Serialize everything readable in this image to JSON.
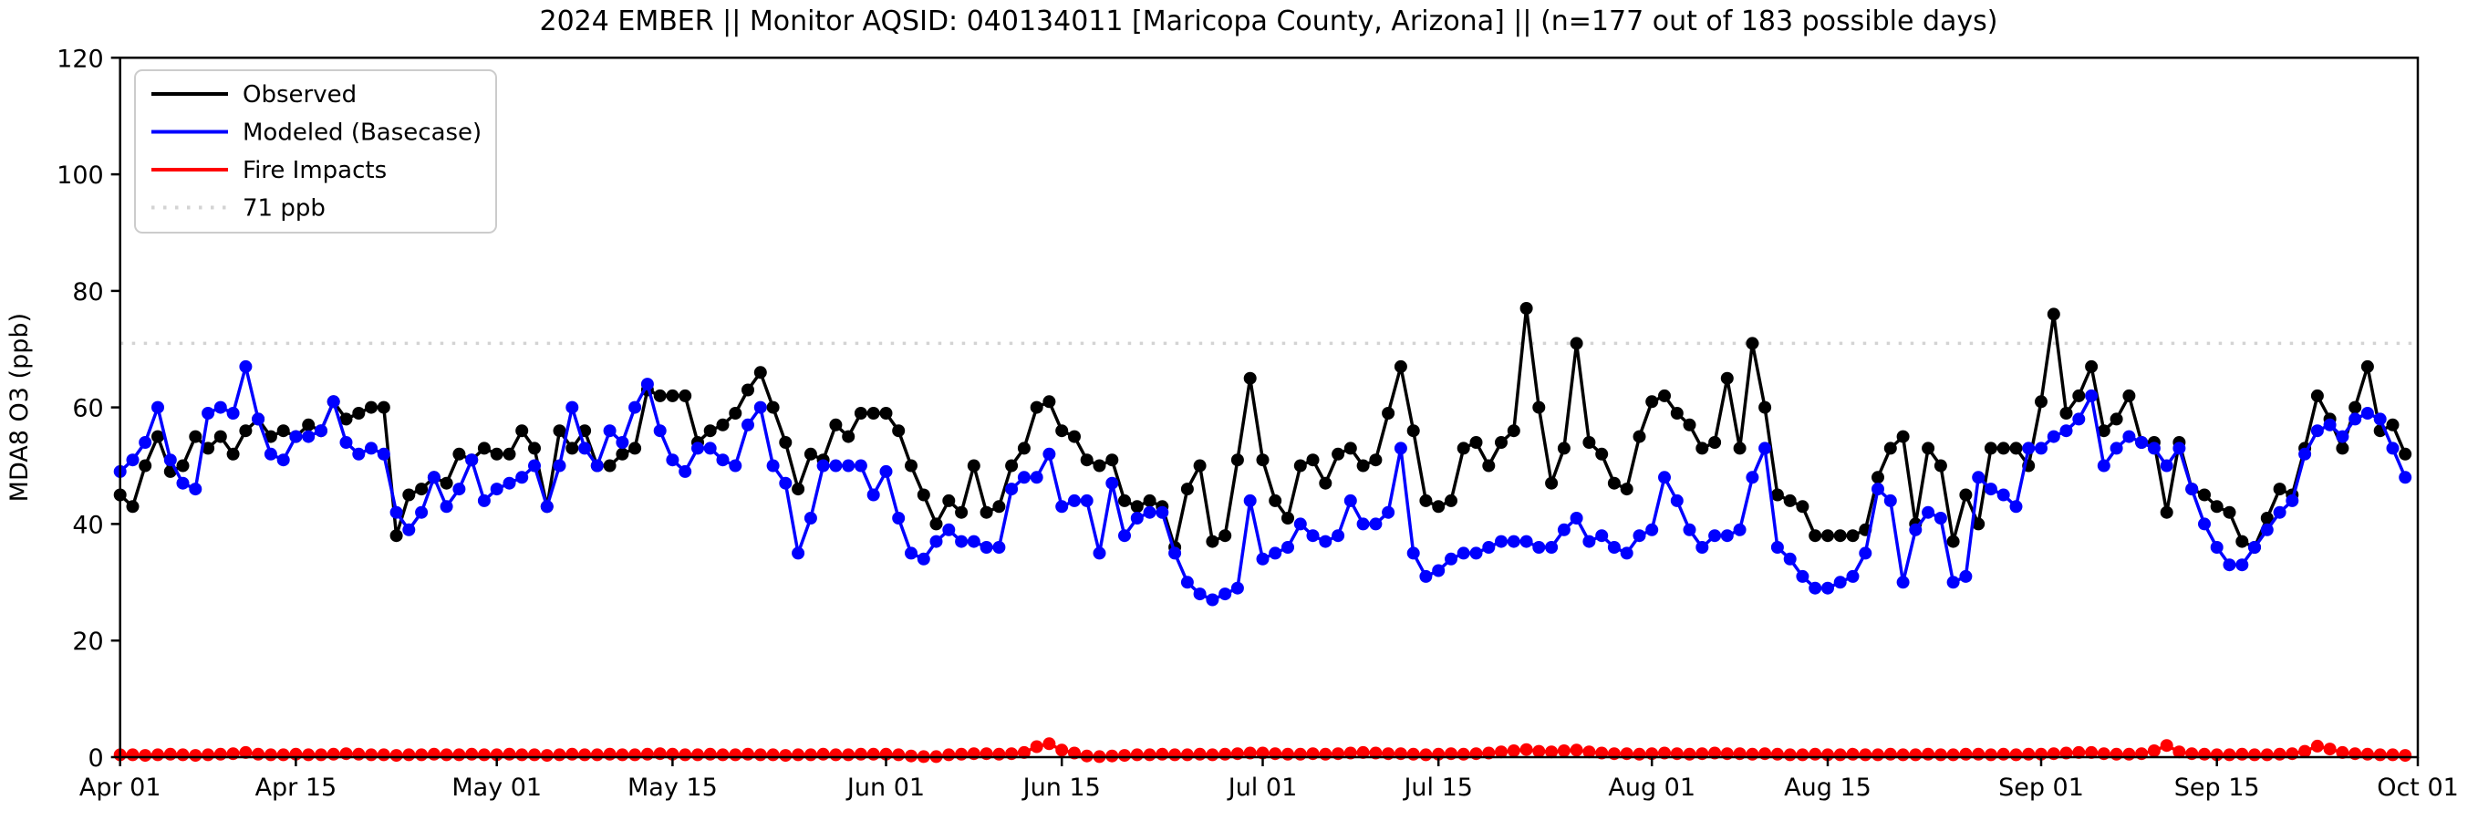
{
  "title": "2024 EMBER || Monitor AQSID: 040134011 [Maricopa County, Arizona] || (n=177 out of 183 possible days)",
  "chart_data": {
    "type": "line",
    "title": "2024 EMBER || Monitor AQSID: 040134011 [Maricopa County, Arizona] || (n=177 out of 183 possible days)",
    "xlabel": "",
    "ylabel": "MDA8 O3 (ppb)",
    "ylim": [
      0,
      120
    ],
    "yticks": [
      0,
      20,
      40,
      60,
      80,
      100,
      120
    ],
    "x_tick_labels": [
      "Apr 01",
      "Apr 15",
      "May 01",
      "May 15",
      "Jun 01",
      "Jun 15",
      "Jul 01",
      "Jul 15",
      "Aug 01",
      "Aug 15",
      "Sep 01",
      "Sep 15",
      "Oct 01"
    ],
    "x_tick_day_index": [
      0,
      14,
      30,
      44,
      61,
      75,
      91,
      105,
      122,
      136,
      153,
      167,
      183
    ],
    "n_days": 183,
    "date_range": "Apr 01 - Sep 30, 2024",
    "grid": false,
    "legend_position": "upper left",
    "threshold": {
      "label": "71 ppb",
      "value": 71,
      "color": "#d3d3d3"
    },
    "legend": [
      {
        "label": "Observed",
        "color": "#000000",
        "style": "solid"
      },
      {
        "label": "Modeled (Basecase)",
        "color": "#0000ff",
        "style": "solid"
      },
      {
        "label": "Fire Impacts",
        "color": "#ff0000",
        "style": "solid"
      },
      {
        "label": "71 ppb",
        "color": "#d3d3d3",
        "style": "dotted"
      }
    ],
    "series": [
      {
        "name": "Observed",
        "color": "#000000",
        "values": [
          45,
          43,
          50,
          55,
          49,
          50,
          55,
          53,
          55,
          52,
          56,
          58,
          55,
          56,
          55,
          57,
          56,
          61,
          58,
          59,
          60,
          60,
          38,
          45,
          46,
          48,
          47,
          52,
          51,
          53,
          52,
          52,
          56,
          53,
          43,
          56,
          53,
          56,
          50,
          50,
          52,
          53,
          63,
          62,
          62,
          62,
          54,
          56,
          57,
          59,
          63,
          66,
          60,
          54,
          46,
          52,
          51,
          57,
          55,
          59,
          59,
          59,
          56,
          50,
          45,
          40,
          44,
          42,
          50,
          42,
          43,
          50,
          53,
          60,
          61,
          56,
          55,
          51,
          50,
          51,
          44,
          43,
          44,
          43,
          36,
          46,
          50,
          37,
          38,
          51,
          65,
          51,
          44,
          41,
          50,
          51,
          47,
          52,
          53,
          50,
          51,
          59,
          67,
          56,
          44,
          43,
          44,
          53,
          54,
          50,
          54,
          56,
          77,
          60,
          47,
          53,
          71,
          54,
          52,
          47,
          46,
          55,
          61,
          62,
          59,
          57,
          53,
          54,
          65,
          53,
          71,
          60,
          45,
          44,
          43,
          38,
          38,
          38,
          38,
          39,
          48,
          53,
          55,
          40,
          53,
          50,
          37,
          45,
          40,
          53,
          53,
          53,
          50,
          61,
          76,
          59,
          62,
          67,
          56,
          58,
          62,
          54,
          54,
          42,
          54,
          46,
          45,
          43,
          42,
          37,
          36,
          41,
          46,
          45,
          53,
          62,
          58,
          53,
          60,
          67,
          56,
          57,
          52
        ]
      },
      {
        "name": "Modeled (Basecase)",
        "color": "#0000ff",
        "values": [
          49,
          51,
          54,
          60,
          51,
          47,
          46,
          59,
          60,
          59,
          67,
          58,
          52,
          51,
          55,
          55,
          56,
          61,
          54,
          52,
          53,
          52,
          42,
          39,
          42,
          48,
          43,
          46,
          51,
          44,
          46,
          47,
          48,
          50,
          43,
          50,
          60,
          53,
          50,
          56,
          54,
          60,
          64,
          56,
          51,
          49,
          53,
          53,
          51,
          50,
          57,
          60,
          50,
          47,
          35,
          41,
          50,
          50,
          50,
          50,
          45,
          49,
          41,
          35,
          34,
          37,
          39,
          37,
          37,
          36,
          36,
          46,
          48,
          48,
          52,
          43,
          44,
          44,
          35,
          47,
          38,
          41,
          42,
          42,
          35,
          30,
          28,
          27,
          28,
          29,
          44,
          34,
          35,
          36,
          40,
          38,
          37,
          38,
          44,
          40,
          40,
          42,
          53,
          35,
          31,
          32,
          34,
          35,
          35,
          36,
          37,
          37,
          37,
          36,
          36,
          39,
          41,
          37,
          38,
          36,
          35,
          38,
          39,
          48,
          44,
          39,
          36,
          38,
          38,
          39,
          48,
          53,
          36,
          34,
          31,
          29,
          29,
          30,
          31,
          35,
          46,
          44,
          30,
          39,
          42,
          41,
          30,
          31,
          48,
          46,
          45,
          43,
          53,
          53,
          55,
          56,
          58,
          62,
          50,
          53,
          55,
          54,
          53,
          50,
          53,
          46,
          40,
          36,
          33,
          33,
          36,
          39,
          42,
          44,
          52,
          56,
          57,
          55,
          58,
          59,
          58,
          53,
          48
        ]
      },
      {
        "name": "Fire Impacts",
        "color": "#ff0000",
        "values": [
          0.4,
          0.4,
          0.3,
          0.4,
          0.5,
          0.4,
          0.3,
          0.4,
          0.5,
          0.6,
          0.8,
          0.5,
          0.4,
          0.4,
          0.5,
          0.4,
          0.4,
          0.5,
          0.6,
          0.5,
          0.4,
          0.4,
          0.3,
          0.4,
          0.4,
          0.5,
          0.4,
          0.4,
          0.5,
          0.4,
          0.4,
          0.5,
          0.4,
          0.4,
          0.3,
          0.4,
          0.5,
          0.4,
          0.4,
          0.5,
          0.4,
          0.4,
          0.5,
          0.6,
          0.5,
          0.4,
          0.4,
          0.5,
          0.4,
          0.4,
          0.5,
          0.4,
          0.4,
          0.3,
          0.4,
          0.4,
          0.5,
          0.4,
          0.4,
          0.5,
          0.5,
          0.5,
          0.4,
          0.2,
          0.1,
          0.1,
          0.4,
          0.5,
          0.6,
          0.6,
          0.5,
          0.6,
          0.8,
          1.8,
          2.3,
          1.2,
          0.7,
          0.2,
          0.1,
          0.2,
          0.3,
          0.4,
          0.4,
          0.5,
          0.4,
          0.4,
          0.5,
          0.4,
          0.5,
          0.6,
          0.7,
          0.7,
          0.6,
          0.5,
          0.5,
          0.6,
          0.5,
          0.6,
          0.7,
          0.8,
          0.7,
          0.6,
          0.6,
          0.5,
          0.4,
          0.5,
          0.6,
          0.5,
          0.6,
          0.7,
          0.9,
          1.1,
          1.3,
          1.0,
          0.9,
          1.1,
          1.2,
          0.9,
          0.7,
          0.6,
          0.6,
          0.5,
          0.6,
          0.7,
          0.6,
          0.5,
          0.6,
          0.7,
          0.6,
          0.6,
          0.5,
          0.6,
          0.5,
          0.4,
          0.4,
          0.5,
          0.4,
          0.4,
          0.5,
          0.4,
          0.4,
          0.5,
          0.4,
          0.4,
          0.5,
          0.4,
          0.4,
          0.5,
          0.5,
          0.4,
          0.5,
          0.4,
          0.5,
          0.5,
          0.6,
          0.7,
          0.8,
          0.8,
          0.6,
          0.5,
          0.5,
          0.6,
          1.1,
          2.0,
          0.9,
          0.6,
          0.5,
          0.4,
          0.4,
          0.5,
          0.4,
          0.4,
          0.5,
          0.6,
          1.0,
          1.9,
          1.4,
          0.8,
          0.6,
          0.5,
          0.4,
          0.4,
          0.3
        ]
      }
    ]
  }
}
